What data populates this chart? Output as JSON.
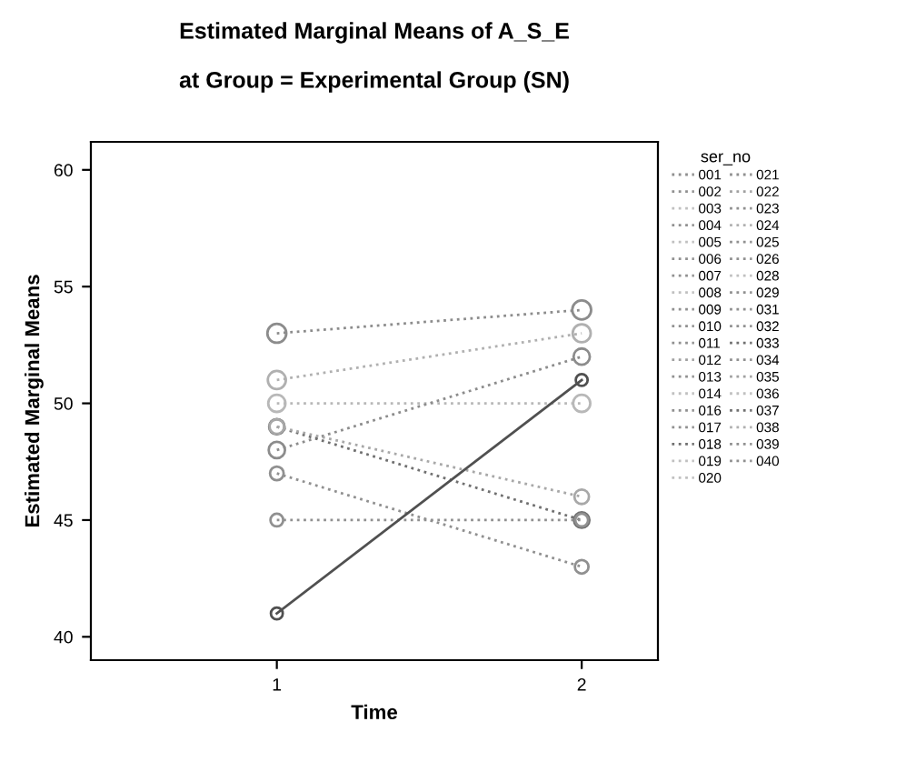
{
  "chart_data": {
    "type": "line",
    "title": "Estimated Marginal Means of A_S_E",
    "subtitle": "at Group = Experimental Group (SN)",
    "xlabel": "Time",
    "ylabel": "Estimated Marginal Means",
    "legend_title": "ser_no",
    "categories": [
      "1",
      "2"
    ],
    "ylim": [
      39,
      61.2
    ],
    "yticks": [
      40,
      45,
      50,
      55,
      60
    ],
    "grid": false,
    "legend": "right",
    "marker": "circle",
    "series": [
      {
        "color": "#8c8c8c",
        "line_style": "dotted",
        "values": [
          53,
          54
        ]
      },
      {
        "color": "#b0b0b0",
        "line_style": "dotted",
        "values": [
          51,
          53
        ]
      },
      {
        "color": "#b8b8b8",
        "line_style": "dotted",
        "values": [
          50,
          50
        ]
      },
      {
        "color": "#8c8c8c",
        "line_style": "dotted",
        "values": [
          48,
          52
        ]
      },
      {
        "color": "#707070",
        "line_style": "dotted",
        "values": [
          49,
          45
        ]
      },
      {
        "color": "#a8a8a8",
        "line_style": "dotted",
        "values": [
          49,
          46
        ]
      },
      {
        "color": "#909090",
        "line_style": "dotted",
        "values": [
          47,
          43
        ]
      },
      {
        "color": "#909090",
        "line_style": "dotted",
        "values": [
          45,
          45
        ]
      },
      {
        "color": "#505050",
        "line_style": "solid",
        "values": [
          41,
          51
        ]
      },
      {
        "name": "001",
        "color": "#909090",
        "line_style": "dotted",
        "values": [
          null,
          null
        ]
      },
      {
        "name": "002",
        "color": "#909090",
        "line_style": "dotted",
        "values": [
          null,
          null
        ]
      },
      {
        "name": "003",
        "color": "#c0c0c0",
        "line_style": "dotted",
        "values": [
          null,
          null
        ]
      },
      {
        "name": "004",
        "color": "#909090",
        "line_style": "dotted",
        "values": [
          null,
          null
        ]
      },
      {
        "name": "005",
        "color": "#c0c0c0",
        "line_style": "dotted",
        "values": [
          null,
          null
        ]
      },
      {
        "name": "006",
        "color": "#909090",
        "line_style": "dotted",
        "values": [
          null,
          null
        ]
      },
      {
        "name": "007",
        "color": "#909090",
        "line_style": "dotted",
        "values": [
          null,
          null
        ]
      },
      {
        "name": "008",
        "color": "#c0c0c0",
        "line_style": "dotted",
        "values": [
          null,
          null
        ]
      },
      {
        "name": "009",
        "color": "#909090",
        "line_style": "dotted",
        "values": [
          null,
          null
        ]
      },
      {
        "name": "010",
        "color": "#909090",
        "line_style": "dotted",
        "values": [
          null,
          null
        ]
      },
      {
        "name": "011",
        "color": "#909090",
        "line_style": "dotted",
        "values": [
          null,
          null
        ]
      },
      {
        "name": "012",
        "color": "#a0a0a0",
        "line_style": "dotted",
        "values": [
          null,
          null
        ]
      },
      {
        "name": "013",
        "color": "#909090",
        "line_style": "dotted",
        "values": [
          null,
          null
        ]
      },
      {
        "name": "014",
        "color": "#c0c0c0",
        "line_style": "dotted",
        "values": [
          null,
          null
        ]
      },
      {
        "name": "016",
        "color": "#909090",
        "line_style": "dotted",
        "values": [
          null,
          null
        ]
      },
      {
        "name": "017",
        "color": "#909090",
        "line_style": "dotted",
        "values": [
          null,
          null
        ]
      },
      {
        "name": "018",
        "color": "#707070",
        "line_style": "dotted",
        "values": [
          null,
          null
        ]
      },
      {
        "name": "019",
        "color": "#c0c0c0",
        "line_style": "dotted",
        "values": [
          null,
          null
        ]
      },
      {
        "name": "020",
        "color": "#c0c0c0",
        "line_style": "dotted",
        "values": [
          null,
          null
        ]
      },
      {
        "name": "021",
        "color": "#909090",
        "line_style": "dotted",
        "values": [
          null,
          null
        ]
      },
      {
        "name": "022",
        "color": "#a0a0a0",
        "line_style": "dotted",
        "values": [
          null,
          null
        ]
      },
      {
        "name": "023",
        "color": "#909090",
        "line_style": "dotted",
        "values": [
          null,
          null
        ]
      },
      {
        "name": "024",
        "color": "#b0b0b0",
        "line_style": "dotted",
        "values": [
          null,
          null
        ]
      },
      {
        "name": "025",
        "color": "#909090",
        "line_style": "dotted",
        "values": [
          null,
          null
        ]
      },
      {
        "name": "026",
        "color": "#909090",
        "line_style": "dotted",
        "values": [
          null,
          null
        ]
      },
      {
        "name": "028",
        "color": "#c0c0c0",
        "line_style": "dotted",
        "values": [
          null,
          null
        ]
      },
      {
        "name": "029",
        "color": "#909090",
        "line_style": "dotted",
        "values": [
          null,
          null
        ]
      },
      {
        "name": "031",
        "color": "#909090",
        "line_style": "dotted",
        "values": [
          null,
          null
        ]
      },
      {
        "name": "032",
        "color": "#909090",
        "line_style": "dotted",
        "values": [
          null,
          null
        ]
      },
      {
        "name": "033",
        "color": "#707070",
        "line_style": "dotted",
        "values": [
          null,
          null
        ]
      },
      {
        "name": "034",
        "color": "#909090",
        "line_style": "dotted",
        "values": [
          null,
          null
        ]
      },
      {
        "name": "035",
        "color": "#a0a0a0",
        "line_style": "dotted",
        "values": [
          null,
          null
        ]
      },
      {
        "name": "036",
        "color": "#c0c0c0",
        "line_style": "dotted",
        "values": [
          null,
          null
        ]
      },
      {
        "name": "037",
        "color": "#707070",
        "line_style": "dotted",
        "values": [
          null,
          null
        ]
      },
      {
        "name": "038",
        "color": "#b0b0b0",
        "line_style": "dotted",
        "values": [
          null,
          null
        ]
      },
      {
        "name": "039",
        "color": "#909090",
        "line_style": "dotted",
        "values": [
          null,
          null
        ]
      },
      {
        "name": "040",
        "color": "#909090",
        "line_style": "dotted",
        "values": [
          null,
          null
        ]
      }
    ]
  }
}
